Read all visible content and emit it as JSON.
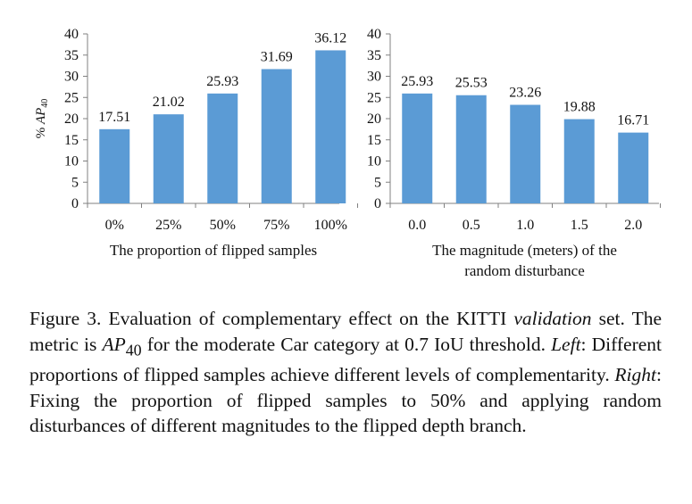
{
  "chart_data": [
    {
      "type": "bar",
      "categories": [
        "0%",
        "25%",
        "50%",
        "75%",
        "100%"
      ],
      "values": [
        17.51,
        21.02,
        25.93,
        31.69,
        36.12
      ],
      "xlabel": [
        "The proportion of flipped samples"
      ],
      "ylabel": {
        "prefix": "% ",
        "metric": "AP",
        "subscript": "40"
      },
      "ylim": [
        0,
        40
      ],
      "yticks": [
        0,
        5,
        10,
        15,
        20,
        25,
        30,
        35,
        40
      ],
      "bar_color": "#5B9BD5",
      "grid": false,
      "legend": "none"
    },
    {
      "type": "bar",
      "categories": [
        "0.0",
        "0.5",
        "1.0",
        "1.5",
        "2.0"
      ],
      "values": [
        25.93,
        25.53,
        23.26,
        19.88,
        16.71
      ],
      "xlabel": [
        "The  magnitude (meters) of the",
        "random disturbance"
      ],
      "ylim": [
        0,
        40
      ],
      "yticks": [
        0,
        5,
        10,
        15,
        20,
        25,
        30,
        35,
        40
      ],
      "bar_color": "#5B9BD5",
      "grid": false,
      "legend": "none"
    }
  ],
  "caption": {
    "label": "Figure 3.",
    "t1": "Evaluation of complementary effect on the KITTI ",
    "t1_italic": "validation",
    "t2": " set.  The metric is ",
    "metric": "AP",
    "metric_sub": "40",
    "t3": " for the moderate Car category at 0.7 IoU threshold. ",
    "left_label": "Left",
    "t4": ": Different proportions of flipped samples achieve different levels of complementarity. ",
    "right_label": "Right",
    "t5": ": Fixing the proportion of flipped samples to 50% and applying random disturbances of different magnitudes to the flipped depth branch."
  }
}
